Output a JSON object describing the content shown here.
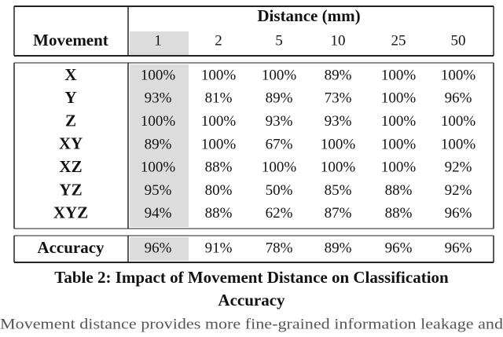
{
  "table": {
    "group_header": "Distance (mm)",
    "row_header": "Movement",
    "columns": [
      "1",
      "2",
      "5",
      "10",
      "25",
      "50"
    ],
    "rows": [
      [
        "X",
        "100%",
        "100%",
        "100%",
        "89%",
        "100%",
        "100%"
      ],
      [
        "Y",
        "93%",
        "81%",
        "89%",
        "73%",
        "100%",
        "96%"
      ],
      [
        "Z",
        "100%",
        "100%",
        "93%",
        "93%",
        "100%",
        "100%"
      ],
      [
        "XY",
        "89%",
        "100%",
        "67%",
        "100%",
        "100%",
        "100%"
      ],
      [
        "XZ",
        "100%",
        "88%",
        "100%",
        "100%",
        "100%",
        "92%"
      ],
      [
        "YZ",
        "95%",
        "80%",
        "50%",
        "85%",
        "88%",
        "92%"
      ],
      [
        "XYZ",
        "94%",
        "88%",
        "62%",
        "87%",
        "88%",
        "96%"
      ]
    ],
    "summary": [
      "Accuracy",
      "96%",
      "91%",
      "78%",
      "89%",
      "96%",
      "96%"
    ]
  },
  "caption": [
    "Table 2: Impact of Movement Distance on Classification",
    "Accuracy"
  ],
  "body_text": "Movement distance provides more fine-grained information leakage and"
}
